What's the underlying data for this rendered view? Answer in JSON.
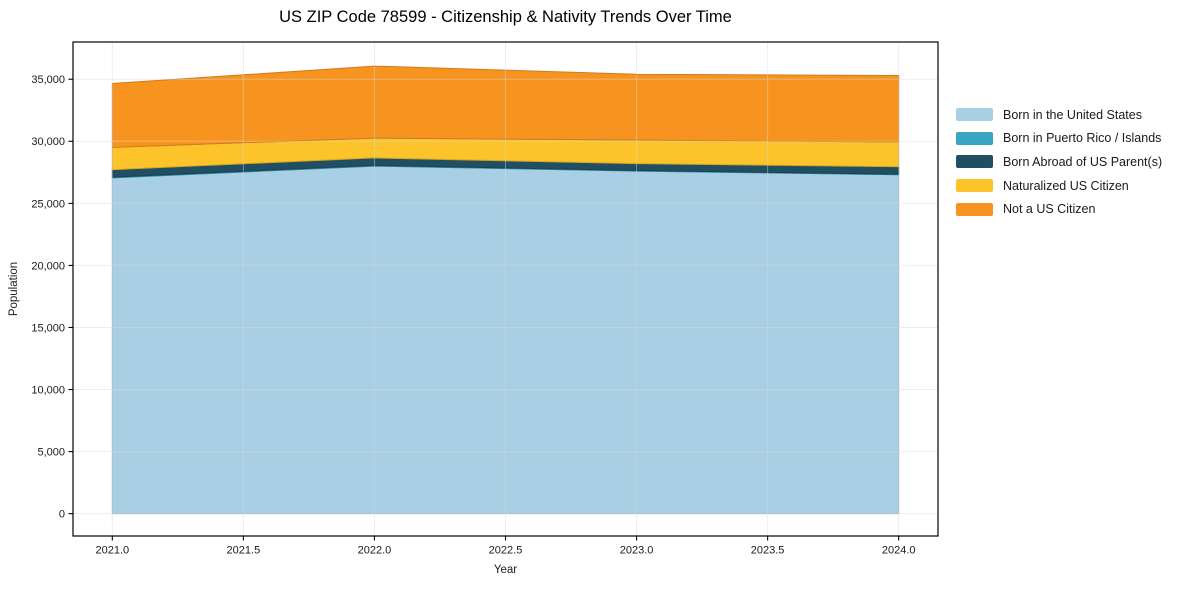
{
  "figure": {
    "background": "#ffffff"
  },
  "chart_data": {
    "type": "area",
    "stacked": true,
    "title": "US ZIP Code 78599 - Citizenship & Nativity Trends Over Time",
    "xlabel": "Year",
    "ylabel": "Population",
    "x": [
      2021,
      2022,
      2023,
      2024
    ],
    "series": [
      {
        "name": "Born in the United States",
        "color": "#a9cfe4",
        "values": [
          27050,
          28000,
          27600,
          27300
        ]
      },
      {
        "name": "Born in Puerto Rico / Islands",
        "color": "#3aa5c2",
        "values": [
          60,
          60,
          50,
          50
        ]
      },
      {
        "name": "Born Abroad of US Parent(s)",
        "color": "#204e63",
        "values": [
          600,
          600,
          550,
          600
        ]
      },
      {
        "name": "Naturalized US Citizen",
        "color": "#fdc32b",
        "values": [
          1800,
          1600,
          1900,
          2000
        ]
      },
      {
        "name": "Not a US Citizen",
        "color": "#f79420",
        "values": [
          5150,
          5800,
          5300,
          5350
        ]
      }
    ],
    "xlim": [
      2020.85,
      2024.15
    ],
    "ylim": [
      -1800,
      38000
    ],
    "x_ticks": [
      2021.0,
      2021.5,
      2022.0,
      2022.5,
      2023.0,
      2023.5,
      2024.0
    ],
    "x_tick_labels": [
      "2021.0",
      "2021.5",
      "2022.0",
      "2022.5",
      "2023.0",
      "2023.5",
      "2024.0"
    ],
    "y_ticks": [
      0,
      5000,
      10000,
      15000,
      20000,
      25000,
      30000,
      35000
    ],
    "y_tick_labels": [
      "0",
      "5,000",
      "10,000",
      "15,000",
      "20,000",
      "25,000",
      "30,000",
      "35,000"
    ],
    "grid": true,
    "legend_position": "right"
  },
  "style": {
    "grid_color": "#d9d9d9",
    "spine_color": "#000000",
    "tick_text_color": "#1a1a1a"
  }
}
